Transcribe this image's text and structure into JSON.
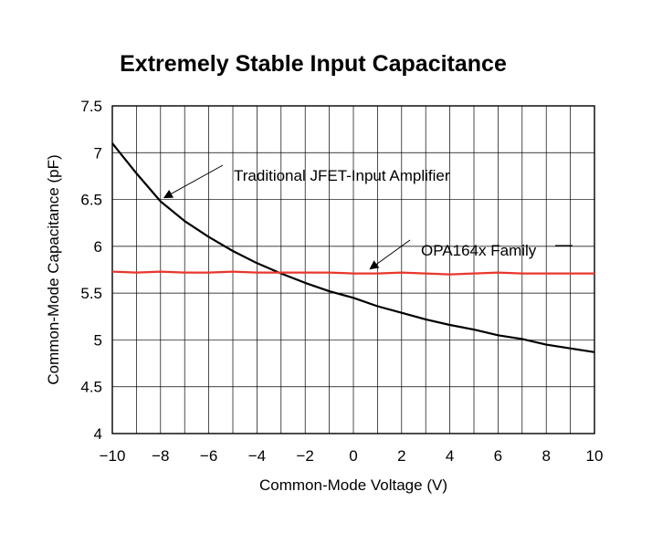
{
  "chart_data": {
    "type": "line",
    "title": "Extremely Stable Input Capacitance",
    "xlabel": "Common-Mode Voltage (V)",
    "ylabel": "Common-Mode Capacitance (pF)",
    "xlim": [
      -10,
      10
    ],
    "ylim": [
      4,
      7.5
    ],
    "xticks": [
      -10,
      -8,
      -6,
      -4,
      -2,
      0,
      2,
      4,
      6,
      8,
      10
    ],
    "xtick_labels": [
      "−10",
      "−8",
      "−6",
      "−4",
      "−2",
      "0",
      "2",
      "4",
      "6",
      "8",
      "10"
    ],
    "yticks": [
      4,
      4.5,
      5,
      5.5,
      6,
      6.5,
      7,
      7.5
    ],
    "ytick_labels": [
      "4",
      "4.5",
      "5",
      "5.5",
      "6",
      "6.5",
      "7",
      "7.5"
    ],
    "grid": true,
    "series": [
      {
        "name": "Traditional JFET-Input Amplifier",
        "color": "#000000",
        "x": [
          -10,
          -9,
          -8,
          -7,
          -6,
          -5,
          -4,
          -3,
          -2,
          -1,
          0,
          1,
          2,
          3,
          4,
          5,
          6,
          7,
          8,
          9,
          10
        ],
        "y": [
          7.1,
          6.78,
          6.48,
          6.27,
          6.1,
          5.95,
          5.82,
          5.71,
          5.61,
          5.52,
          5.45,
          5.36,
          5.29,
          5.22,
          5.16,
          5.11,
          5.05,
          5.01,
          4.95,
          4.91,
          4.87
        ]
      },
      {
        "name": "OPA164x Family",
        "color": "#e8372c",
        "x": [
          -10,
          -9,
          -8,
          -7,
          -6,
          -5,
          -4,
          -3,
          -2,
          -1,
          0,
          1,
          2,
          3,
          4,
          5,
          6,
          7,
          8,
          9,
          10
        ],
        "y": [
          5.73,
          5.72,
          5.73,
          5.72,
          5.72,
          5.73,
          5.72,
          5.72,
          5.72,
          5.72,
          5.71,
          5.71,
          5.72,
          5.71,
          5.7,
          5.71,
          5.72,
          5.71,
          5.71,
          5.71,
          5.71
        ]
      }
    ],
    "annotations": [
      {
        "text": "Traditional JFET-Input Amplifier",
        "series": 0,
        "arrow_to_x": -8
      },
      {
        "text": "OPA164x Family",
        "series": 1,
        "arrow_to_x": 0.5
      }
    ]
  }
}
